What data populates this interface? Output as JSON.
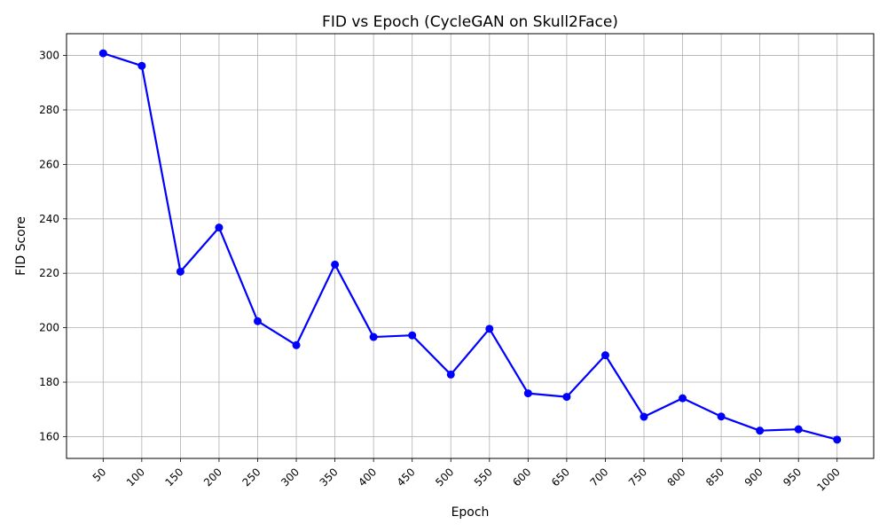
{
  "chart_data": {
    "type": "line",
    "title": "FID vs Epoch (CycleGAN on Skull2Face)",
    "xlabel": "Epoch",
    "ylabel": "FID Score",
    "x": [
      50,
      100,
      150,
      200,
      250,
      300,
      350,
      400,
      450,
      500,
      550,
      600,
      650,
      700,
      750,
      800,
      850,
      900,
      950,
      1000
    ],
    "series": [
      {
        "values": [
          300.8,
          296.2,
          220.6,
          236.8,
          202.4,
          193.6,
          223.2,
          196.6,
          197.2,
          182.8,
          199.6,
          175.9,
          174.6,
          189.9,
          167.3,
          174.1,
          167.4,
          162.2,
          162.7,
          158.9
        ],
        "color": "#0000ff",
        "marker": "circle"
      }
    ],
    "ylim": [
      152,
      308
    ],
    "yticks": [
      160,
      180,
      200,
      220,
      240,
      260,
      280,
      300
    ],
    "xtick_rotation": 45,
    "grid": true
  }
}
